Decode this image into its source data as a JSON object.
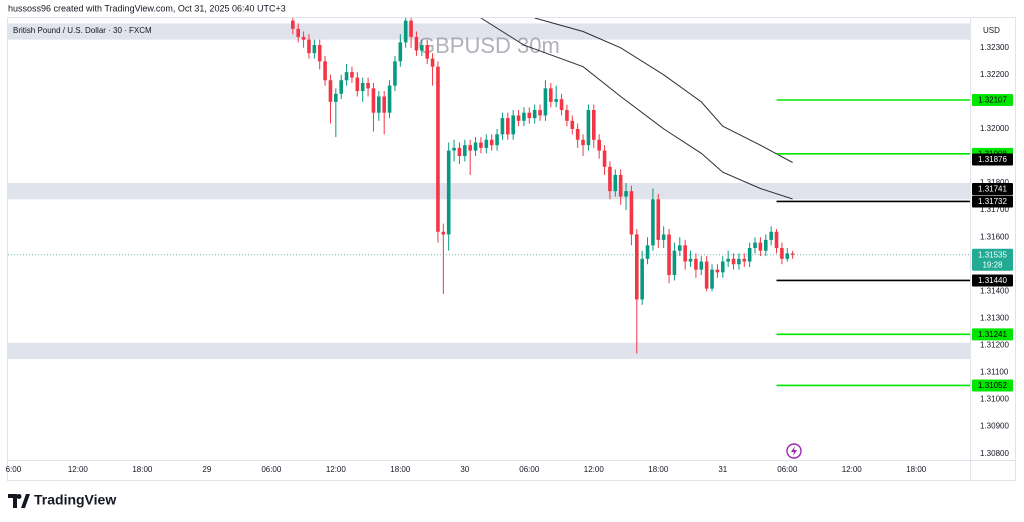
{
  "chart_data": {
    "type": "candlestick",
    "header": "hussoss96 created with TradingView.com, Oct 31, 2025 06:40 UTC+3",
    "symbol": "British Pound / U.S. Dollar · 30 · FXCM",
    "watermark": "GBPUSD 30m",
    "currency": "USD",
    "brand": "TradingView",
    "countdown": "19:28",
    "up_color": "#089981",
    "down_color": "#f23645",
    "x": [
      "29 08:00",
      "29 08:30",
      "29 09:00",
      "29 09:30",
      "29 10:00",
      "29 10:30",
      "29 11:00",
      "29 11:30",
      "29 12:00",
      "29 12:30",
      "29 13:00",
      "29 13:30",
      "29 14:00",
      "29 14:30",
      "29 15:00",
      "29 15:30",
      "29 16:00",
      "29 16:30",
      "29 17:00",
      "29 17:30",
      "29 18:00",
      "29 18:30",
      "29 19:00",
      "29 19:30",
      "29 20:00",
      "29 20:30",
      "29 21:00",
      "29 21:30",
      "29 22:00",
      "29 22:30",
      "29 23:00",
      "29 23:30",
      "30 00:00",
      "30 00:30",
      "30 01:00",
      "30 01:30",
      "30 02:00",
      "30 02:30",
      "30 03:00",
      "30 03:30",
      "30 04:00",
      "30 04:30",
      "30 05:00",
      "30 05:30",
      "30 06:00",
      "30 06:30",
      "30 07:00",
      "30 07:30",
      "30 08:00",
      "30 08:30",
      "30 09:00",
      "30 09:30",
      "30 10:00",
      "30 10:30",
      "30 11:00",
      "30 11:30",
      "30 12:00",
      "30 12:30",
      "30 13:00",
      "30 13:30",
      "30 14:00",
      "30 14:30",
      "30 15:00",
      "30 15:30",
      "30 16:00",
      "30 16:30",
      "30 17:00",
      "30 17:30",
      "30 18:00",
      "30 18:30",
      "30 19:00",
      "30 19:30",
      "30 20:00",
      "30 20:30",
      "30 21:00",
      "30 21:30",
      "30 22:00",
      "30 22:30",
      "30 23:00",
      "30 23:30",
      "31 00:00",
      "31 00:30",
      "31 01:00",
      "31 01:30",
      "31 02:00",
      "31 02:30",
      "31 03:00",
      "31 03:30",
      "31 04:00",
      "31 04:30",
      "31 05:00",
      "31 05:30",
      "31 06:00",
      "31 06:30"
    ],
    "open": [
      1.324,
      1.3237,
      1.3234,
      1.3233,
      1.3228,
      1.3231,
      1.3225,
      1.3218,
      1.321,
      1.3213,
      1.3218,
      1.3221,
      1.3219,
      1.3214,
      1.3217,
      1.3215,
      1.3206,
      1.3212,
      1.3206,
      1.3216,
      1.3225,
      1.3232,
      1.324,
      1.3234,
      1.3229,
      1.3231,
      1.3226,
      1.3223,
      1.3162,
      1.3161,
      1.3192,
      1.3193,
      1.319,
      1.3194,
      1.3192,
      1.3195,
      1.3193,
      1.3196,
      1.3194,
      1.3198,
      1.3204,
      1.3198,
      1.3205,
      1.3203,
      1.3206,
      1.3204,
      1.3207,
      1.3205,
      1.3215,
      1.321,
      1.3211,
      1.3207,
      1.3203,
      1.32,
      1.3196,
      1.3194,
      1.3207,
      1.3196,
      1.3192,
      1.3186,
      1.3177,
      1.3183,
      1.3175,
      1.3177,
      1.3161,
      1.3137,
      1.3152,
      1.3157,
      1.3174,
      1.3159,
      1.3161,
      1.3146,
      1.3155,
      1.3157,
      1.3151,
      1.3152,
      1.3148,
      1.3151,
      1.3141,
      1.3148,
      1.3147,
      1.3151,
      1.3152,
      1.315,
      1.3152,
      1.3151,
      1.3156,
      1.3158,
      1.3155,
      1.3159,
      1.3162,
      1.3156,
      1.3152,
      1.3154
    ],
    "high": [
      1.3242,
      1.3239,
      1.3236,
      1.3235,
      1.3233,
      1.3233,
      1.3227,
      1.322,
      1.3215,
      1.322,
      1.3224,
      1.3223,
      1.3221,
      1.3219,
      1.3219,
      1.3217,
      1.3214,
      1.3214,
      1.3218,
      1.3227,
      1.3235,
      1.3242,
      1.3241,
      1.3236,
      1.3233,
      1.3233,
      1.3228,
      1.3225,
      1.3165,
      1.3195,
      1.3196,
      1.3195,
      1.3196,
      1.3196,
      1.3197,
      1.3197,
      1.3198,
      1.3198,
      1.32,
      1.3206,
      1.3206,
      1.3207,
      1.3207,
      1.3208,
      1.3208,
      1.3209,
      1.3209,
      1.3218,
      1.3217,
      1.3216,
      1.3213,
      1.3209,
      1.3205,
      1.3202,
      1.3198,
      1.3209,
      1.3209,
      1.3198,
      1.3194,
      1.3188,
      1.3185,
      1.3185,
      1.318,
      1.3179,
      1.3163,
      1.3155,
      1.316,
      1.3178,
      1.3176,
      1.3164,
      1.3163,
      1.3158,
      1.316,
      1.3159,
      1.3155,
      1.3154,
      1.3153,
      1.3153,
      1.315,
      1.315,
      1.3153,
      1.3155,
      1.3154,
      1.3154,
      1.3154,
      1.3158,
      1.316,
      1.316,
      1.3161,
      1.3164,
      1.3163,
      1.3158,
      1.3156,
      1.3155
    ],
    "low": [
      1.3235,
      1.3232,
      1.323,
      1.3226,
      1.3226,
      1.3222,
      1.3216,
      1.3202,
      1.3197,
      1.3211,
      1.3216,
      1.3217,
      1.3212,
      1.321,
      1.3212,
      1.3199,
      1.3203,
      1.3198,
      1.3204,
      1.3214,
      1.3223,
      1.323,
      1.323,
      1.3227,
      1.3227,
      1.3224,
      1.3216,
      1.3158,
      1.3139,
      1.3155,
      1.3188,
      1.3187,
      1.3188,
      1.3183,
      1.319,
      1.3191,
      1.3191,
      1.3192,
      1.3192,
      1.3196,
      1.3196,
      1.3196,
      1.3201,
      1.3201,
      1.3202,
      1.3202,
      1.3203,
      1.3203,
      1.3208,
      1.3208,
      1.3205,
      1.3201,
      1.3198,
      1.3193,
      1.319,
      1.3192,
      1.3193,
      1.3189,
      1.3183,
      1.3174,
      1.3175,
      1.3172,
      1.317,
      1.3157,
      1.3117,
      1.3135,
      1.315,
      1.3155,
      1.3156,
      1.3156,
      1.3143,
      1.3144,
      1.3153,
      1.3148,
      1.3149,
      1.3145,
      1.3146,
      1.314,
      1.314,
      1.3145,
      1.3145,
      1.3149,
      1.3148,
      1.3148,
      1.3149,
      1.3149,
      1.3154,
      1.3153,
      1.3153,
      1.3157,
      1.3154,
      1.315,
      1.3151,
      1.3152
    ],
    "close": [
      1.3237,
      1.3234,
      1.3233,
      1.3228,
      1.3231,
      1.3225,
      1.3218,
      1.321,
      1.3213,
      1.3218,
      1.3221,
      1.3219,
      1.3214,
      1.3217,
      1.3215,
      1.3206,
      1.3212,
      1.3206,
      1.3216,
      1.3225,
      1.3232,
      1.324,
      1.3234,
      1.3229,
      1.3231,
      1.3226,
      1.3223,
      1.3162,
      1.3161,
      1.3192,
      1.3193,
      1.319,
      1.3194,
      1.3192,
      1.3195,
      1.3193,
      1.3196,
      1.3194,
      1.3198,
      1.3204,
      1.3198,
      1.3205,
      1.3203,
      1.3206,
      1.3204,
      1.3207,
      1.3205,
      1.3215,
      1.321,
      1.3211,
      1.3207,
      1.3203,
      1.32,
      1.3196,
      1.3194,
      1.3207,
      1.3196,
      1.3192,
      1.3186,
      1.3177,
      1.3183,
      1.3175,
      1.3177,
      1.3161,
      1.3137,
      1.3152,
      1.3157,
      1.3174,
      1.3159,
      1.3161,
      1.3146,
      1.3155,
      1.3157,
      1.3151,
      1.3152,
      1.3148,
      1.3151,
      1.3141,
      1.3148,
      1.3147,
      1.3151,
      1.3152,
      1.315,
      1.3152,
      1.3151,
      1.3156,
      1.3158,
      1.3155,
      1.3159,
      1.3162,
      1.3156,
      1.3152,
      1.3154,
      1.31535
    ],
    "indicators": [
      {
        "color": "#2a2e39",
        "x": [
          "30 01:30",
          "30 05:30",
          "30 11:00",
          "30 14:30",
          "30 18:30",
          "30 22:00",
          "31 00:00",
          "31 03:30",
          "31 06:30"
        ],
        "values": [
          1.3241,
          1.3231,
          1.3223,
          1.3212,
          1.32,
          1.3191,
          1.3184,
          1.3178,
          1.31741
        ],
        "value_labels": [
          null,
          null,
          null,
          null,
          null,
          null,
          null,
          null,
          "1.31741"
        ]
      },
      {
        "color": "#2a2e39",
        "x": [
          "30 06:30",
          "30 11:00",
          "30 14:30",
          "30 18:30",
          "30 22:00",
          "31 00:00",
          "31 03:30",
          "31 06:30"
        ],
        "values": [
          1.3241,
          1.3236,
          1.323,
          1.322,
          1.321,
          1.3201,
          1.3194,
          1.31876
        ],
        "value_labels": [
          null,
          null,
          null,
          null,
          null,
          null,
          null,
          "1.31876"
        ]
      }
    ],
    "levels": [
      {
        "value": 1.32107,
        "color": "#00e600"
      },
      {
        "value": 1.31908,
        "color": "#00e600"
      },
      {
        "value": 1.31732,
        "color": "#000000"
      },
      {
        "value": 1.3144,
        "label": "1.31440",
        "color": "#000000"
      },
      {
        "value": 1.31241,
        "color": "#00e600"
      },
      {
        "value": 1.31052,
        "color": "#00e600"
      }
    ],
    "zones": [
      [
        1.3239,
        1.3233
      ],
      [
        1.318,
        1.3174
      ],
      [
        1.3121,
        1.3115
      ]
    ],
    "zone_color": "#e0e3eb",
    "ylim": [
      1.3071,
      1.3241
    ],
    "yticks": [
      {
        "value": 1.323,
        "label": "1.32300"
      },
      {
        "value": 1.322,
        "label": "1.32200"
      },
      {
        "value": 1.32,
        "label": "1.32000"
      },
      {
        "value": 1.318,
        "label": "1.31800"
      },
      {
        "value": 1.317,
        "label": "1.31700"
      },
      {
        "value": 1.316,
        "label": "1.31600"
      },
      {
        "value": 1.314,
        "label": "1.31400"
      },
      {
        "value": 1.313,
        "label": "1.31300"
      },
      {
        "value": 1.312,
        "label": "1.31200"
      },
      {
        "value": 1.311,
        "label": "1.31100"
      },
      {
        "value": 1.31,
        "label": "1.31000"
      },
      {
        "value": 1.309,
        "label": "1.30900"
      },
      {
        "value": 1.308,
        "label": "1.30800"
      }
    ],
    "xlim": [
      "28 05:30",
      "31 23:00"
    ],
    "xticks": [
      {
        "value": "28 06:00",
        "label": "6:00"
      },
      {
        "value": "28 12:00",
        "label": "12:00"
      },
      {
        "value": "28 18:00",
        "label": "18:00"
      },
      {
        "value": "29 00:00",
        "label": "29"
      },
      {
        "value": "29 06:00",
        "label": "06:00"
      },
      {
        "value": "29 12:00",
        "label": "12:00"
      },
      {
        "value": "29 18:00",
        "label": "18:00"
      },
      {
        "value": "30 00:00",
        "label": "30"
      },
      {
        "value": "30 06:00",
        "label": "06:00"
      },
      {
        "value": "30 12:00",
        "label": "12:00"
      },
      {
        "value": "30 18:00",
        "label": "18:00"
      },
      {
        "value": "31 00:00",
        "label": "31"
      },
      {
        "value": "31 06:00",
        "label": "06:00"
      },
      {
        "value": "31 12:00",
        "label": "12:00"
      },
      {
        "value": "31 18:00",
        "label": "18:00"
      }
    ],
    "grid": false
  }
}
